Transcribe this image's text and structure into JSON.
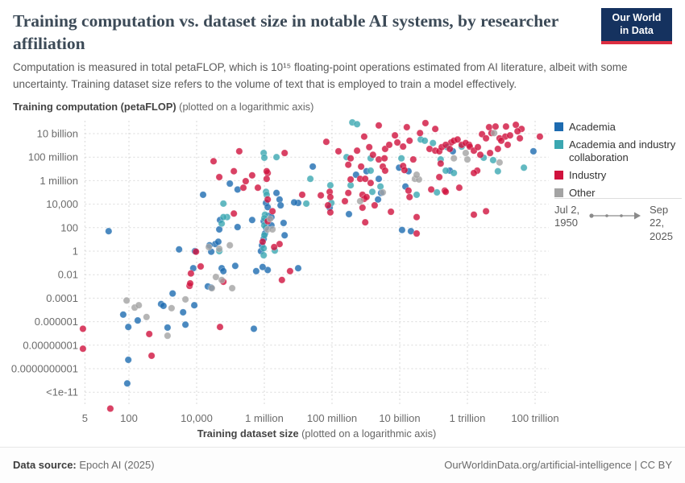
{
  "header": {
    "title": "Training computation vs. dataset size in notable AI systems, by researcher affiliation",
    "subtitle": "Computation is measured in total petaFLOP, which is 10¹⁵ floating-point operations estimated from AI literature, albeit with some uncertainty. Training dataset size refers to the volume of text that is employed to train a model effectively.",
    "logo": {
      "line1": "Our World",
      "line2": "in Data",
      "bg_color": "#15325f",
      "bar_color": "#dc2e41"
    }
  },
  "axes": {
    "y_title_bold": "Training computation (petaFLOP)",
    "y_title_note": " (plotted on a logarithmic axis)",
    "x_title_bold": "Training dataset size",
    "x_title_note": " (plotted on a logarithmic axis)"
  },
  "legend": {
    "items": [
      {
        "label": "Academia",
        "color": "#1d6bb0"
      },
      {
        "label": "Academia and industry collaboration",
        "color": "#3ba7b1"
      },
      {
        "label": "Industry",
        "color": "#d0123d"
      },
      {
        "label": "Other",
        "color": "#a3a3a3"
      }
    ]
  },
  "timeline": {
    "start": "Jul 2, 1950",
    "end": "Sep 22, 2025"
  },
  "footer": {
    "source_label": "Data source:",
    "source_value": " Epoch AI (2025)",
    "rights": "OurWorldinData.org/artificial-intelligence | CC BY"
  },
  "chart_data": {
    "type": "scatter",
    "x_scale": "log10",
    "y_scale": "log10",
    "x_range_log10": [
      0.55,
      14.5
    ],
    "y_range_log10": [
      -13.5,
      11
    ],
    "grid": true,
    "x_ticks": [
      {
        "label": "5",
        "log10": 0.699
      },
      {
        "label": "100",
        "log10": 2
      },
      {
        "label": "10,000",
        "log10": 4
      },
      {
        "label": "1 million",
        "log10": 6
      },
      {
        "label": "100 million",
        "log10": 8
      },
      {
        "label": "10 billion",
        "log10": 10
      },
      {
        "label": "1 trillion",
        "log10": 12
      },
      {
        "label": "100 trillion",
        "log10": 14
      }
    ],
    "y_ticks": [
      {
        "label": "10 billion",
        "log10": 10
      },
      {
        "label": "100 million",
        "log10": 8
      },
      {
        "label": "1 million",
        "log10": 6
      },
      {
        "label": "10,000",
        "log10": 4
      },
      {
        "label": "100",
        "log10": 2
      },
      {
        "label": "1",
        "log10": 0
      },
      {
        "label": "0.01",
        "log10": -2
      },
      {
        "label": "0.0001",
        "log10": -4
      },
      {
        "label": "0.000001",
        "log10": -6
      },
      {
        "label": "0.00000001",
        "log10": -8
      },
      {
        "label": "0.0000000001",
        "log10": -10
      },
      {
        "label": "<1e-11",
        "log10": -12
      }
    ],
    "series": [
      {
        "name": "Academia",
        "color": "#1d6bb0",
        "points_log10": [
          [
            1.4,
            1.7
          ],
          [
            1.83,
            -5.4
          ],
          [
            2.26,
            -5.9
          ],
          [
            1.98,
            -6.45
          ],
          [
            2.95,
            -4.5
          ],
          [
            3.02,
            -4.65
          ],
          [
            3.29,
            -3.6
          ],
          [
            3.6,
            -5.2
          ],
          [
            3.14,
            -6.5
          ],
          [
            3.67,
            -6.25
          ],
          [
            3.93,
            -4.6
          ],
          [
            1.98,
            -9.25
          ],
          [
            1.95,
            -11.25
          ],
          [
            4.33,
            -3.0
          ],
          [
            4.43,
            -3.1
          ],
          [
            4.74,
            -1.45
          ],
          [
            4.79,
            -1.7
          ],
          [
            5.14,
            -1.25
          ],
          [
            5.76,
            -1.7
          ],
          [
            6.1,
            -1.6
          ],
          [
            5.69,
            -6.6
          ],
          [
            3.9,
            -1.45
          ],
          [
            3.48,
            0.15
          ],
          [
            4.19,
            4.8
          ],
          [
            5.21,
            5.25
          ],
          [
            4.69,
            2.65
          ],
          [
            4.67,
            1.85
          ],
          [
            5.21,
            2.05
          ],
          [
            5.64,
            2.65
          ],
          [
            4.55,
            0.6
          ],
          [
            4.38,
            0.5
          ],
          [
            4.43,
            -0.05
          ],
          [
            3.95,
            0.0
          ],
          [
            4.64,
            0.8
          ],
          [
            6.05,
            4.1
          ],
          [
            6.1,
            3.75
          ],
          [
            6.12,
            3.0
          ],
          [
            5.98,
            2.55
          ],
          [
            6.05,
            2.0
          ],
          [
            6.21,
            2.9
          ],
          [
            6.02,
            1.5
          ],
          [
            5.98,
            1.05
          ],
          [
            5.93,
            0.5
          ],
          [
            5.9,
            0.0
          ],
          [
            5.95,
            -1.35
          ],
          [
            6.6,
            1.35
          ],
          [
            6.45,
            4.4
          ],
          [
            6.48,
            3.9
          ],
          [
            6.36,
            4.95
          ],
          [
            6.21,
            2.2
          ],
          [
            6.57,
            2.4
          ],
          [
            4.98,
            5.75
          ],
          [
            7.43,
            7.2
          ],
          [
            7.0,
            4.1
          ],
          [
            6.88,
            4.15
          ],
          [
            7.93,
            3.7
          ],
          [
            8.71,
            6.5
          ],
          [
            9.38,
            6.15
          ],
          [
            8.5,
            3.15
          ],
          [
            9.45,
            4.95
          ],
          [
            9.36,
            4.4
          ],
          [
            9.98,
            7.1
          ],
          [
            9.02,
            6.8
          ],
          [
            10.26,
            6.8
          ],
          [
            10.17,
            5.5
          ],
          [
            10.07,
            1.8
          ],
          [
            10.33,
            1.7
          ],
          [
            11.57,
            8.5
          ],
          [
            11.48,
            6.85
          ],
          [
            7.0,
            -1.45
          ],
          [
            13.95,
            8.5
          ]
        ]
      },
      {
        "name": "Academia and industry collaboration",
        "color": "#3ba7b1",
        "points_log10": [
          [
            4.79,
            4.05
          ],
          [
            4.9,
            2.9
          ],
          [
            4.74,
            2.35
          ],
          [
            4.67,
            0.0
          ],
          [
            5.98,
            8.35
          ],
          [
            6.0,
            7.95
          ],
          [
            6.05,
            5.05
          ],
          [
            6.07,
            4.8
          ],
          [
            6.02,
            3.1
          ],
          [
            6.0,
            2.8
          ],
          [
            6.0,
            2.2
          ],
          [
            6.0,
            1.35
          ],
          [
            5.98,
            0.25
          ],
          [
            5.98,
            -0.35
          ],
          [
            6.31,
            0.05
          ],
          [
            6.36,
            8.0
          ],
          [
            7.36,
            6.15
          ],
          [
            7.24,
            4.05
          ],
          [
            7.95,
            5.6
          ],
          [
            7.98,
            4.1
          ],
          [
            8.43,
            8.0
          ],
          [
            8.55,
            5.6
          ],
          [
            9.43,
            5.5
          ],
          [
            9.14,
            7.9
          ],
          [
            10.05,
            7.9
          ],
          [
            10.62,
            9.5
          ],
          [
            10.74,
            9.4
          ],
          [
            11.21,
            7.8
          ],
          [
            9.14,
            6.85
          ],
          [
            10.5,
            4.8
          ],
          [
            11.1,
            5.0
          ],
          [
            10.98,
            9.2
          ],
          [
            12.9,
            6.8
          ],
          [
            11.83,
            8.9
          ],
          [
            11.4,
            8.85
          ],
          [
            8.6,
            10.95
          ],
          [
            8.74,
            10.8
          ],
          [
            12.48,
            7.95
          ],
          [
            12.76,
            7.75
          ],
          [
            11.36,
            6.85
          ],
          [
            11.6,
            6.65
          ],
          [
            13.67,
            7.1
          ],
          [
            9.19,
            5.05
          ],
          [
            4.79,
            2.9
          ]
        ]
      },
      {
        "name": "Industry",
        "color": "#d0123d",
        "points_log10": [
          [
            0.64,
            -6.6
          ],
          [
            0.64,
            -8.3
          ],
          [
            1.45,
            -13.4
          ],
          [
            2.6,
            -7.05
          ],
          [
            2.67,
            -8.9
          ],
          [
            3.79,
            -2.95
          ],
          [
            4.79,
            -2.6
          ],
          [
            6.76,
            -1.7
          ],
          [
            6.52,
            -2.45
          ],
          [
            4.69,
            -6.45
          ],
          [
            3.83,
            -1.9
          ],
          [
            3.81,
            -2.75
          ],
          [
            4.12,
            -1.3
          ],
          [
            3.98,
            -0.05
          ],
          [
            4.67,
            6.3
          ],
          [
            5.1,
            6.8
          ],
          [
            5.64,
            6.45
          ],
          [
            6.1,
            6.65
          ],
          [
            5.38,
            5.4
          ],
          [
            5.81,
            5.4
          ],
          [
            5.1,
            3.2
          ],
          [
            6.07,
            6.8
          ],
          [
            6.07,
            6.15
          ],
          [
            6.1,
            4.4
          ],
          [
            6.1,
            2.55
          ],
          [
            5.95,
            0.8
          ],
          [
            6.45,
            0.6
          ],
          [
            6.29,
            0.35
          ],
          [
            6.24,
            3.4
          ],
          [
            5.45,
            5.95
          ],
          [
            6.6,
            8.35
          ],
          [
            5.26,
            8.5
          ],
          [
            4.5,
            7.65
          ],
          [
            7.12,
            4.8
          ],
          [
            7.67,
            4.75
          ],
          [
            7.88,
            3.9
          ],
          [
            7.93,
            5.05
          ],
          [
            7.95,
            4.6
          ],
          [
            7.95,
            3.3
          ],
          [
            7.83,
            9.3
          ],
          [
            8.55,
            7.9
          ],
          [
            8.48,
            7.35
          ],
          [
            8.55,
            6.1
          ],
          [
            8.83,
            6.15
          ],
          [
            8.98,
            6.15
          ],
          [
            9.14,
            5.8
          ],
          [
            8.74,
            8.55
          ],
          [
            9.1,
            8.85
          ],
          [
            9.21,
            8.2
          ],
          [
            9.57,
            8.7
          ],
          [
            9.69,
            9.05
          ],
          [
            9.38,
            7.8
          ],
          [
            9.55,
            7.9
          ],
          [
            9.93,
            9.25
          ],
          [
            10.1,
            8.9
          ],
          [
            10.29,
            9.4
          ],
          [
            10.88,
            8.7
          ],
          [
            11.05,
            8.55
          ],
          [
            11.17,
            8.5
          ],
          [
            11.21,
            7.45
          ],
          [
            10.4,
            7.8
          ],
          [
            10.1,
            7.25
          ],
          [
            10.14,
            6.9
          ],
          [
            9.5,
            7.2
          ],
          [
            9.57,
            6.85
          ],
          [
            8.86,
            7.2
          ],
          [
            8.48,
            4.95
          ],
          [
            8.38,
            4.25
          ],
          [
            8.9,
            4.8
          ],
          [
            8.95,
            4.45
          ],
          [
            9.02,
            4.6
          ],
          [
            8.9,
            3.7
          ],
          [
            9.26,
            3.9
          ],
          [
            8.98,
            2.45
          ],
          [
            9.74,
            3.35
          ],
          [
            10.26,
            5.15
          ],
          [
            10.29,
            4.6
          ],
          [
            10.93,
            5.25
          ],
          [
            11.33,
            5.15
          ],
          [
            10.5,
            2.9
          ],
          [
            10.5,
            1.5
          ],
          [
            12.19,
            3.1
          ],
          [
            11.52,
            9.25
          ],
          [
            12.05,
            9.05
          ],
          [
            12.29,
            6.85
          ],
          [
            12.55,
            3.4
          ],
          [
            12.64,
            10.55
          ],
          [
            12.83,
            10.6
          ],
          [
            13.14,
            10.6
          ],
          [
            13.43,
            10.75
          ],
          [
            13.6,
            10.4
          ],
          [
            12.71,
            10.05
          ],
          [
            12.95,
            9.6
          ],
          [
            13.12,
            9.75
          ],
          [
            13.26,
            9.85
          ],
          [
            13.48,
            10.2
          ],
          [
            13.55,
            9.6
          ],
          [
            12.43,
            9.95
          ],
          [
            12.55,
            9.6
          ],
          [
            13.0,
            9.4
          ],
          [
            14.14,
            9.75
          ],
          [
            11.24,
            8.85
          ],
          [
            11.36,
            9.05
          ],
          [
            11.48,
            8.7
          ],
          [
            11.6,
            9.4
          ],
          [
            11.71,
            9.5
          ],
          [
            11.83,
            9.05
          ],
          [
            11.95,
            9.2
          ],
          [
            12.07,
            8.9
          ],
          [
            12.19,
            8.55
          ],
          [
            12.31,
            8.85
          ],
          [
            12.19,
            6.65
          ],
          [
            11.17,
            6.3
          ],
          [
            11.36,
            5.05
          ],
          [
            11.76,
            5.4
          ],
          [
            12.38,
            8.2
          ],
          [
            12.67,
            8.35
          ],
          [
            12.9,
            8.7
          ],
          [
            13.19,
            9.05
          ],
          [
            9.38,
            10.7
          ],
          [
            10.21,
            10.55
          ],
          [
            10.76,
            10.9
          ],
          [
            11.05,
            10.4
          ],
          [
            10.6,
            10.05
          ],
          [
            9.86,
            9.85
          ],
          [
            8.95,
            9.75
          ],
          [
            8.19,
            8.5
          ]
        ]
      },
      {
        "name": "Other",
        "color": "#a3a3a3",
        "points_log10": [
          [
            1.93,
            -4.2
          ],
          [
            2.17,
            -4.8
          ],
          [
            2.29,
            -4.6
          ],
          [
            2.52,
            -5.6
          ],
          [
            3.26,
            -4.85
          ],
          [
            3.14,
            -7.2
          ],
          [
            3.67,
            -4.1
          ],
          [
            4.45,
            -3.15
          ],
          [
            4.57,
            -2.2
          ],
          [
            4.74,
            -2.45
          ],
          [
            5.05,
            -3.15
          ],
          [
            4.98,
            0.5
          ],
          [
            4.36,
            0.35
          ],
          [
            4.67,
            0.2
          ],
          [
            6.1,
            1.85
          ],
          [
            6.17,
            2.75
          ],
          [
            6.24,
            1.85
          ],
          [
            10.45,
            6.15
          ],
          [
            10.57,
            6.1
          ],
          [
            10.5,
            6.5
          ],
          [
            8.83,
            4.25
          ],
          [
            11.6,
            7.9
          ],
          [
            12.0,
            7.8
          ],
          [
            12.79,
            10.05
          ],
          [
            12.95,
            7.55
          ],
          [
            11.95,
            8.35
          ],
          [
            9.5,
            5.0
          ]
        ]
      }
    ]
  }
}
